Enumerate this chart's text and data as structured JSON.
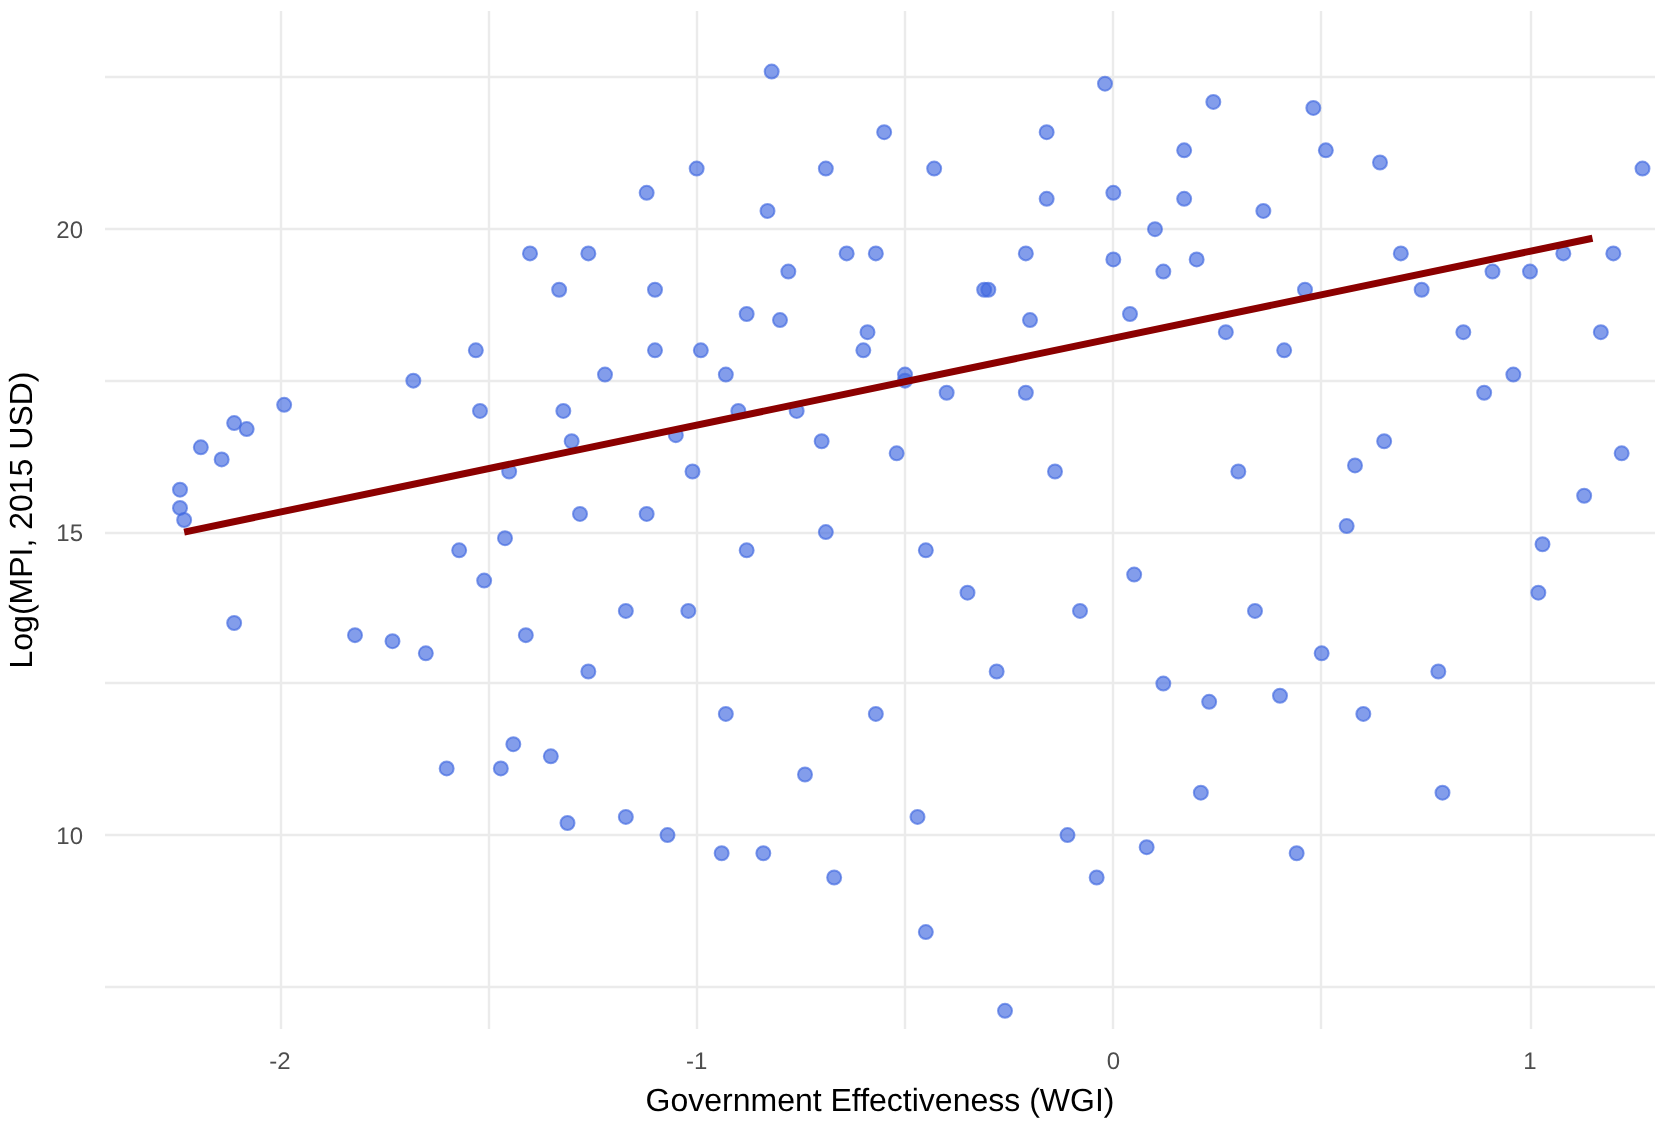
{
  "chart_data": {
    "type": "scatter",
    "xlabel": "Government Effectiveness (WGI)",
    "ylabel": "Log(MPI, 2015 USD)",
    "xlim": [
      -2.42,
      1.3
    ],
    "ylim": [
      6.8,
      23.6
    ],
    "xticks": [
      -2,
      {
        "value": -1.5,
        "label": null
      },
      -1,
      {
        "value": -0.5,
        "label": null
      },
      0,
      {
        "value": 0.5,
        "label": null
      },
      1
    ],
    "yticks": [
      {
        "value": 7.5,
        "label": null
      },
      10,
      {
        "value": 12.5,
        "label": null
      },
      15,
      {
        "value": 17.5,
        "label": null
      },
      20,
      {
        "value": 22.5,
        "label": null
      }
    ],
    "grid": true,
    "series": [
      {
        "marker": "circle",
        "color": "#4169e1",
        "x": [
          -2.24,
          -2.24,
          -2.23,
          -2.19,
          -2.14,
          -2.11,
          -2.08,
          -2.11,
          -1.99,
          -1.82,
          -1.73,
          -1.68,
          -1.65,
          -1.6,
          -1.57,
          -1.53,
          -1.52,
          -1.51,
          -1.47,
          -1.44,
          -1.46,
          -1.41,
          -1.4,
          -1.35,
          -1.31,
          -1.33,
          -1.32,
          -1.28,
          -1.26,
          -1.22,
          -1.17,
          -1.17,
          -1.12,
          -1.1,
          -1.07,
          -1.05,
          -1.01,
          -1.0,
          -0.99,
          -0.94,
          -0.93,
          -0.88,
          -0.84,
          -0.82,
          -0.78,
          -0.76,
          -0.74,
          -0.69,
          -0.67,
          -0.64,
          -0.59,
          -0.57,
          -0.55,
          -0.52,
          -0.47,
          -0.45,
          -0.43,
          -0.4,
          -0.35,
          -0.31,
          -0.28,
          -0.26,
          -0.21,
          -0.16,
          -0.14,
          -0.11,
          -0.08,
          -0.04,
          -0.02,
          0.0,
          0.04,
          0.05,
          0.08,
          0.12,
          0.17,
          0.21,
          0.24,
          0.27,
          0.3,
          0.34,
          0.36,
          0.41,
          0.46,
          0.48,
          0.5,
          0.51,
          0.56,
          0.58,
          0.6,
          0.64,
          0.69,
          0.74,
          0.78,
          0.79,
          0.84,
          0.89,
          0.91,
          0.96,
          1.0,
          1.02,
          1.03,
          1.08,
          1.13,
          1.17,
          1.2,
          1.22,
          1.27,
          0.44,
          0.12,
          0.23,
          0.4,
          0.65,
          -0.57,
          -0.5,
          -0.88,
          -0.93,
          -1.02,
          -1.26,
          -1.45,
          -0.45,
          -0.21,
          -0.16,
          0.17,
          -0.69,
          -0.83,
          -1.12,
          -0.8,
          -0.6,
          -0.3,
          0.0,
          0.1,
          -0.9,
          -0.5,
          -0.2,
          0.2,
          -0.7,
          -1.1,
          -1.3
        ],
        "values": [
          15.7,
          15.4,
          15.2,
          16.4,
          16.2,
          16.8,
          16.7,
          13.5,
          17.1,
          13.3,
          13.2,
          17.5,
          13.0,
          11.1,
          14.7,
          18.0,
          17.0,
          14.2,
          11.1,
          11.5,
          14.9,
          13.3,
          19.6,
          11.3,
          10.2,
          19.0,
          17.0,
          15.3,
          19.6,
          17.6,
          13.7,
          10.3,
          20.6,
          19.0,
          10.0,
          16.6,
          16.0,
          21.0,
          18.0,
          9.7,
          12.0,
          14.7,
          9.7,
          22.6,
          19.3,
          17.0,
          11.0,
          15.0,
          9.3,
          19.6,
          18.3,
          12.0,
          21.6,
          16.3,
          10.3,
          8.4,
          21.0,
          17.3,
          14.0,
          19.0,
          12.7,
          7.1,
          19.6,
          21.6,
          16.0,
          10.0,
          13.7,
          9.3,
          22.4,
          20.6,
          18.6,
          14.3,
          9.8,
          19.3,
          21.3,
          10.7,
          22.1,
          18.3,
          16.0,
          13.7,
          20.3,
          18.0,
          19.0,
          22.0,
          13.0,
          21.3,
          15.1,
          16.1,
          12.0,
          21.1,
          19.6,
          19.0,
          12.7,
          10.7,
          18.3,
          17.3,
          19.3,
          17.6,
          19.3,
          14.0,
          14.8,
          19.6,
          15.6,
          18.3,
          19.6,
          16.3,
          21.0,
          9.7,
          12.5,
          12.2,
          12.3,
          16.5,
          19.6,
          17.6,
          18.6,
          17.6,
          13.7,
          12.7,
          16.0,
          14.7,
          17.3,
          20.5,
          20.5,
          21.0,
          20.3,
          15.3,
          18.5,
          18.0,
          19.0,
          19.5,
          20.0,
          17.0,
          17.5,
          18.5,
          19.5,
          16.5,
          18.0,
          16.5
        ]
      },
      {
        "type": "line",
        "color": "#8b0000",
        "x": [
          -2.23,
          1.15
        ],
        "values": [
          15.0,
          19.85
        ]
      }
    ]
  }
}
